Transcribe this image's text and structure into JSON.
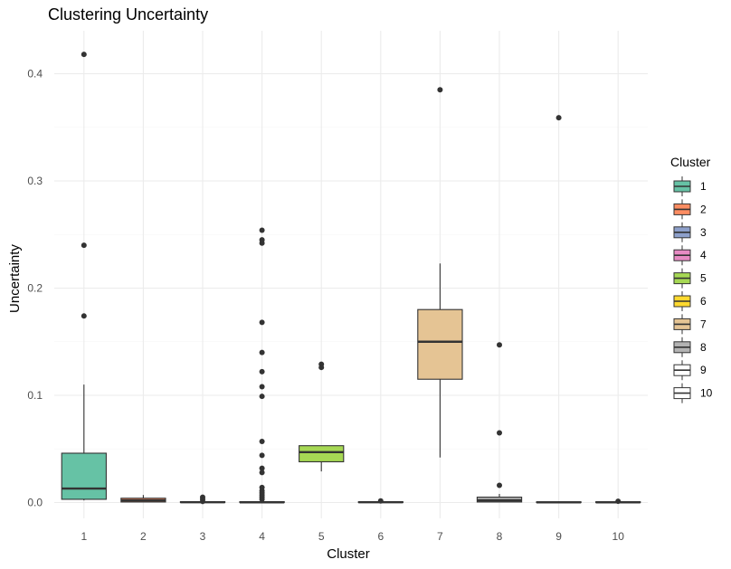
{
  "chart_data": {
    "type": "box",
    "title": "Clustering Uncertainty",
    "xlabel": "Cluster",
    "ylabel": "Uncertainty",
    "ylim": [
      -0.003,
      0.435
    ],
    "yticks": [
      0.0,
      0.1,
      0.2,
      0.3,
      0.4
    ],
    "ytick_labels": [
      "0.0",
      "0.1",
      "0.2",
      "0.3",
      "0.4"
    ],
    "grid": true,
    "legend": {
      "title": "Cluster",
      "position": "right"
    },
    "categories": [
      "1",
      "2",
      "3",
      "4",
      "5",
      "6",
      "7",
      "8",
      "9",
      "10"
    ],
    "series": [
      {
        "name": "1",
        "color": "#66C2A5",
        "whisker_low": 0.002,
        "q1": 0.003,
        "median": 0.013,
        "q3": 0.046,
        "whisker_high": 0.11,
        "outliers": [
          0.418,
          0.24,
          0.174
        ]
      },
      {
        "name": "2",
        "color": "#FC8D62",
        "whisker_low": 0.0,
        "q1": 0.0005,
        "median": 0.002,
        "q3": 0.004,
        "whisker_high": 0.007,
        "outliers": []
      },
      {
        "name": "3",
        "color": "#8DA0CB",
        "whisker_low": 0.0,
        "q1": 0.0,
        "median": 0.0003,
        "q3": 0.0008,
        "whisker_high": 0.0015,
        "outliers": [
          0.005,
          0.003,
          0.001
        ]
      },
      {
        "name": "4",
        "color": "#E78AC3",
        "whisker_low": 0.0,
        "q1": 0.0,
        "median": 0.0002,
        "q3": 0.0008,
        "whisker_high": 0.001,
        "outliers": [
          0.254,
          0.245,
          0.242,
          0.168,
          0.14,
          0.122,
          0.108,
          0.099,
          0.057,
          0.044,
          0.032,
          0.028,
          0.014,
          0.011,
          0.009,
          0.007,
          0.005,
          0.003
        ]
      },
      {
        "name": "5",
        "color": "#A6D854",
        "whisker_low": 0.029,
        "q1": 0.038,
        "median": 0.047,
        "q3": 0.053,
        "whisker_high": 0.053,
        "outliers": [
          0.129,
          0.126
        ]
      },
      {
        "name": "6",
        "color": "#FFD92F",
        "whisker_low": 0.0,
        "q1": 0.0,
        "median": 0.0003,
        "q3": 0.0007,
        "whisker_high": 0.001,
        "outliers": [
          0.0015
        ]
      },
      {
        "name": "7",
        "color": "#E5C494",
        "whisker_low": 0.042,
        "q1": 0.115,
        "median": 0.15,
        "q3": 0.18,
        "whisker_high": 0.223,
        "outliers": [
          0.385
        ]
      },
      {
        "name": "8",
        "color": "#B3B3B3",
        "whisker_low": 0.0,
        "q1": 0.0005,
        "median": 0.002,
        "q3": 0.005,
        "whisker_high": 0.008,
        "outliers": [
          0.147,
          0.065,
          0.016
        ]
      },
      {
        "name": "9",
        "color": "#FFFFFF",
        "whisker_low": 0.0,
        "q1": 0.0,
        "median": 0.0002,
        "q3": 0.0006,
        "whisker_high": 0.001,
        "outliers": [
          0.359
        ]
      },
      {
        "name": "10",
        "color": "#FFFFFF",
        "whisker_low": 0.0,
        "q1": 0.0,
        "median": 0.0002,
        "q3": 0.0007,
        "whisker_high": 0.001,
        "outliers": [
          0.0012
        ]
      }
    ]
  }
}
